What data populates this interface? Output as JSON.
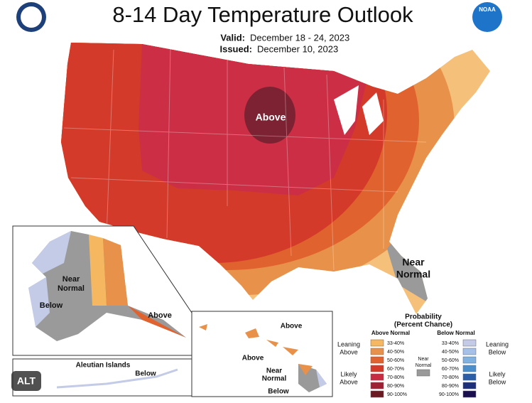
{
  "header": {
    "title": "8-14 Day Temperature Outlook",
    "valid_label": "Valid:",
    "valid_dates": "December 18 - 24, 2023",
    "issued_label": "Issued:",
    "issued_date": "December 10, 2023"
  },
  "logo": "NOAA",
  "conus": {
    "above": "Above",
    "near_normal": [
      "Near",
      "Normal"
    ]
  },
  "alaska": {
    "near_normal": [
      "Near",
      "Normal"
    ],
    "below": "Below",
    "above": "Above"
  },
  "aleutian": {
    "title": "Aleutian Islands",
    "below": "Below"
  },
  "hawaii": {
    "above_1": "Above",
    "above_2": "Above",
    "near_normal": [
      "Near",
      "Normal"
    ],
    "below": "Below"
  },
  "legend": {
    "title": [
      "Probability",
      "(Percent Chance)"
    ],
    "above_header": "Above Normal",
    "below_header": "Below Normal",
    "leaning_above": [
      "Leaning",
      "Above"
    ],
    "likely_above": [
      "Likely",
      "Above"
    ],
    "near_normal": [
      "Near",
      "Normal"
    ],
    "leaning_below": [
      "Leaning",
      "Below"
    ],
    "likely_below": [
      "Likely",
      "Below"
    ],
    "above_bins": [
      {
        "label": "33-40%",
        "color": "#f5b860"
      },
      {
        "label": "40-50%",
        "color": "#e8914a"
      },
      {
        "label": "50-60%",
        "color": "#e0622e"
      },
      {
        "label": "60-70%",
        "color": "#d43a2a"
      },
      {
        "label": "70-80%",
        "color": "#c92c42"
      },
      {
        "label": "80-90%",
        "color": "#a01f33"
      },
      {
        "label": "90-100%",
        "color": "#6b1a22"
      }
    ],
    "near_color": "#9a9a9a",
    "below_bins": [
      {
        "label": "33-40%",
        "color": "#c3cbe6"
      },
      {
        "label": "40-50%",
        "color": "#a6c1e8"
      },
      {
        "label": "50-60%",
        "color": "#7fb2e0"
      },
      {
        "label": "60-70%",
        "color": "#4a8fcc"
      },
      {
        "label": "70-80%",
        "color": "#2a5fa8"
      },
      {
        "label": "80-90%",
        "color": "#1c2f7a"
      },
      {
        "label": "90-100%",
        "color": "#1a1050"
      }
    ]
  },
  "badge": "ALT"
}
